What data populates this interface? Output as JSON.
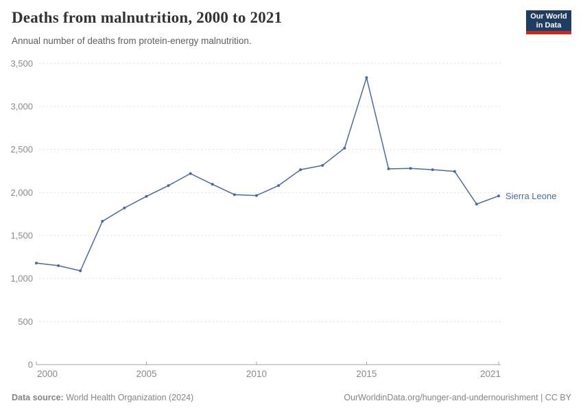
{
  "header": {
    "title": "Deaths from malnutrition, 2000 to 2021",
    "subtitle": "Annual number of deaths from protein-energy malnutrition.",
    "logo": {
      "line1": "Our World",
      "line2": "in Data"
    }
  },
  "chart_data": {
    "type": "line",
    "title": "Deaths from malnutrition, 2000 to 2021",
    "subtitle": "Annual number of deaths from protein-energy malnutrition.",
    "xlabel": "",
    "ylabel": "",
    "x": [
      2000,
      2001,
      2002,
      2003,
      2004,
      2005,
      2006,
      2007,
      2008,
      2009,
      2010,
      2011,
      2012,
      2013,
      2014,
      2015,
      2016,
      2017,
      2018,
      2019,
      2020,
      2021
    ],
    "series": [
      {
        "name": "Sierra Leone",
        "values": [
          1180,
          1150,
          1090,
          1665,
          1820,
          1955,
          2080,
          2220,
          2095,
          1975,
          1965,
          2080,
          2265,
          2315,
          2515,
          3335,
          2275,
          2280,
          2265,
          2245,
          1865,
          1960
        ]
      }
    ],
    "entity_label": "Sierra Leone",
    "xlim": [
      2000,
      2021
    ],
    "ylim": [
      0,
      3500
    ],
    "x_tick_values": [
      2000,
      2005,
      2010,
      2015,
      2021
    ],
    "x_tick_labels": [
      "2000",
      "2005",
      "2010",
      "2015",
      "2021"
    ],
    "y_tick_values": [
      0,
      500,
      1000,
      1500,
      2000,
      2500,
      3000,
      3500
    ],
    "y_tick_labels": [
      "0",
      "500",
      "1,000",
      "1,500",
      "2,000",
      "2,500",
      "3,000",
      "3,500"
    ],
    "grid": "horizontal-dashed",
    "legend_position": "inline-right"
  },
  "footer": {
    "datasource_label": "Data source:",
    "datasource_value": " World Health Organization (2024)",
    "link": "OurWorldinData.org/hunger-and-undernourishment | CC BY"
  },
  "colors": {
    "line": "#4a69a2",
    "point": "#4a69a2",
    "entity_label": "#4a69a2",
    "grid": "#dcdcdc",
    "axis": "#a3a3a3",
    "tick_text": "#8a8a8a",
    "title_text": "#333333",
    "subtitle_text": "#5e5e5e",
    "footer_text": "#858585",
    "logo_bg": "#1d3d63",
    "logo_accent": "#cd281e"
  }
}
